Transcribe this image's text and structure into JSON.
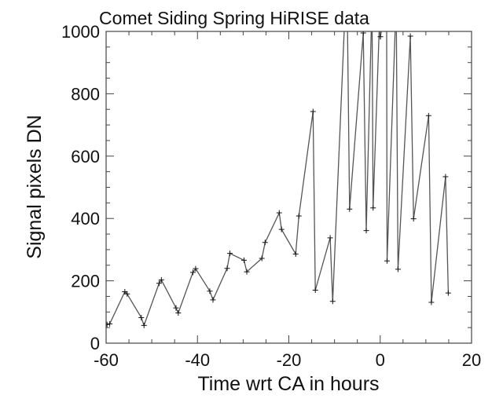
{
  "chart_data": {
    "type": "line",
    "title": "Comet Siding Spring HiRISE data",
    "xlabel": "Time wrt CA in hours",
    "ylabel": "Signal pixels DN",
    "xlim": [
      -60,
      20
    ],
    "ylim": [
      0,
      1000
    ],
    "xticks": [
      "-60",
      "-40",
      "-20",
      "0",
      "20"
    ],
    "yticks": [
      "0",
      "200",
      "400",
      "600",
      "800",
      "1000"
    ],
    "grid": false,
    "marker": "plus",
    "line_color": "#555555",
    "marker_color": "#111111",
    "series": [
      {
        "points": [
          [
            -59.8,
            60
          ],
          [
            -59.2,
            62
          ],
          [
            -55.9,
            165
          ],
          [
            -55.4,
            158
          ],
          [
            -52.3,
            82
          ],
          [
            -51.7,
            57
          ],
          [
            -48.4,
            192
          ],
          [
            -47.9,
            203
          ],
          [
            -44.7,
            113
          ],
          [
            -44.2,
            97
          ],
          [
            -41.0,
            227
          ],
          [
            -40.4,
            239
          ],
          [
            -37.3,
            167
          ],
          [
            -36.6,
            139
          ],
          [
            -33.5,
            240
          ],
          [
            -32.9,
            288
          ],
          [
            -29.8,
            266
          ],
          [
            -29.2,
            229
          ],
          [
            -25.9,
            272
          ],
          [
            -25.2,
            323
          ],
          [
            -22.1,
            418
          ],
          [
            -21.6,
            365
          ],
          [
            -18.5,
            286
          ],
          [
            -17.8,
            408
          ],
          [
            -14.7,
            743
          ],
          [
            -14.2,
            170
          ],
          [
            -10.95,
            338
          ],
          [
            -10.4,
            134
          ],
          [
            -7.3,
            1200
          ],
          [
            -6.7,
            430
          ],
          [
            -3.7,
            995
          ],
          [
            -3.05,
            361
          ],
          [
            -1.8,
            1100
          ],
          [
            -1.55,
            434
          ],
          [
            -0.1,
            1060
          ],
          [
            0.05,
            983
          ],
          [
            1.4,
            1100
          ],
          [
            1.5,
            264
          ],
          [
            3.5,
            1100
          ],
          [
            3.9,
            237
          ],
          [
            6.6,
            985
          ],
          [
            7.3,
            399
          ],
          [
            10.6,
            730
          ],
          [
            11.2,
            131
          ],
          [
            14.3,
            534
          ],
          [
            14.9,
            161
          ]
        ]
      }
    ]
  }
}
